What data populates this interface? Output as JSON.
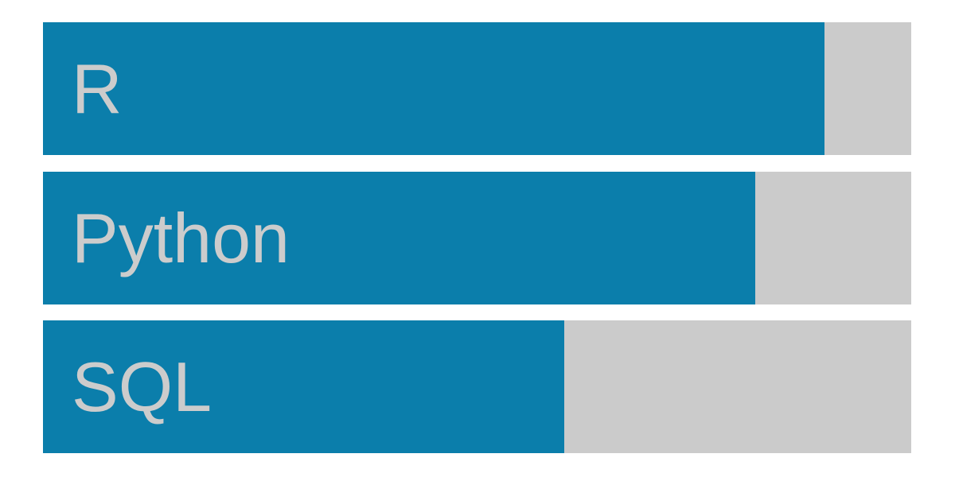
{
  "colors": {
    "fill": "#0b7eab",
    "track": "#cbcbcb",
    "label": "#cccccc",
    "background": "#ffffff"
  },
  "chart_data": {
    "type": "bar",
    "orientation": "horizontal",
    "categories": [
      "R",
      "Python",
      "SQL"
    ],
    "values": [
      90,
      82,
      60
    ],
    "max": 100,
    "labels_inside_bars": true,
    "value_labels": false,
    "axes": false,
    "grid": false,
    "legend": false
  }
}
